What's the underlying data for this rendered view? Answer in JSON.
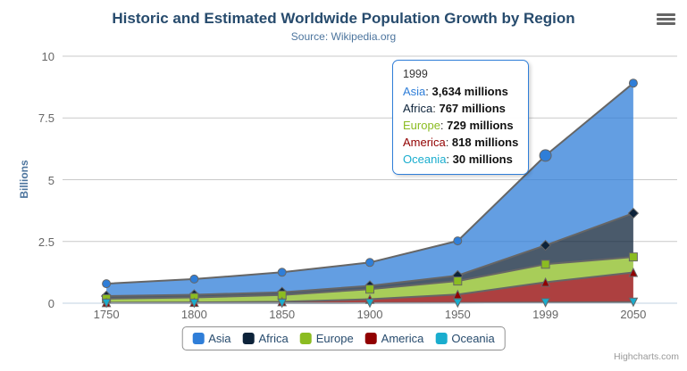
{
  "title": "Historic and Estimated Worldwide Population Growth by Region",
  "subtitle": "Source: Wikipedia.org",
  "credits": "Highcharts.com",
  "yaxis": {
    "title": "Billions"
  },
  "legend": {
    "items": [
      {
        "label": "Asia",
        "color": "#2f7ed8"
      },
      {
        "label": "Africa",
        "color": "#0d233a"
      },
      {
        "label": "Europe",
        "color": "#8bbc21"
      },
      {
        "label": "America",
        "color": "#910000"
      },
      {
        "label": "Oceania",
        "color": "#1aadce"
      }
    ]
  },
  "tooltip": {
    "header": "1999",
    "separator": ": ",
    "rows": [
      {
        "name": "Asia",
        "color": "#2f7ed8",
        "value": "3,634 millions"
      },
      {
        "name": "Africa",
        "color": "#0d233a",
        "value": "767 millions"
      },
      {
        "name": "Europe",
        "color": "#8bbc21",
        "value": "729 millions"
      },
      {
        "name": "America",
        "color": "#910000",
        "value": "818 millions"
      },
      {
        "name": "Oceania",
        "color": "#1aadce",
        "value": "30 millions"
      }
    ]
  },
  "chart_data": {
    "type": "area",
    "stacked": true,
    "title": "Historic and Estimated Worldwide Population Growth by Region",
    "subtitle": "Source: Wikipedia.org",
    "categories": [
      "1750",
      "1800",
      "1850",
      "1900",
      "1950",
      "1999",
      "2050"
    ],
    "series": [
      {
        "name": "Asia",
        "color": "#2f7ed8",
        "marker": "circle",
        "values": [
          502,
          635,
          809,
          947,
          1402,
          3634,
          5268
        ]
      },
      {
        "name": "Africa",
        "color": "#0d233a",
        "marker": "diamond",
        "values": [
          106,
          107,
          111,
          133,
          221,
          767,
          1766
        ]
      },
      {
        "name": "Europe",
        "color": "#8bbc21",
        "marker": "square",
        "values": [
          163,
          203,
          276,
          408,
          547,
          729,
          628
        ]
      },
      {
        "name": "America",
        "color": "#910000",
        "marker": "triangle",
        "values": [
          18,
          31,
          54,
          156,
          339,
          818,
          1201
        ]
      },
      {
        "name": "Oceania",
        "color": "#1aadce",
        "marker": "triangle-down",
        "values": [
          2,
          2,
          2,
          6,
          13,
          30,
          46
        ]
      }
    ],
    "values_unit": "millions",
    "ylabel": "Billions",
    "xlabel": "",
    "ylim": [
      0,
      10
    ],
    "yticks": [
      0,
      2.5,
      5,
      7.5,
      10
    ],
    "grid": true,
    "legend_position": "bottom",
    "line_color": "#666666",
    "fill_opacity": 0.75,
    "grid_color": "#c9c9c9",
    "axis_line_color": "#c0d0e0",
    "hover": {
      "series": "Asia",
      "category": "1999"
    }
  }
}
